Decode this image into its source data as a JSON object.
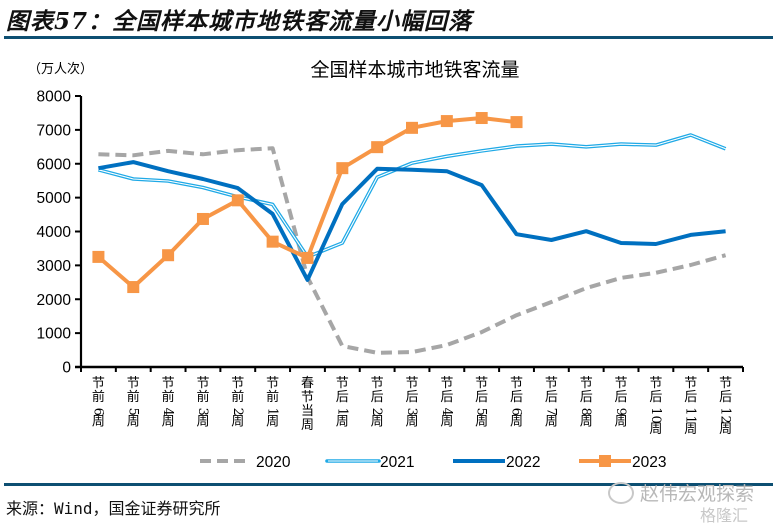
{
  "header": {
    "figure_title": "图表57：全国样本城市地铁客流量小幅回落"
  },
  "footer": {
    "source": "来源：Wind，国金证券研究所",
    "watermark_1": "赵伟宏观探索",
    "watermark_2": "格隆汇"
  },
  "colors": {
    "rule": "#0d4f72",
    "s2020": "#a6a6a6",
    "s2021": "#1fa9e6",
    "s2022": "#0070c0",
    "s2023": "#f79646"
  },
  "chart_data": {
    "type": "line",
    "title": "全国样本城市地铁客流量",
    "unit_label": "（万人次）",
    "xlabel": "",
    "ylabel": "（万人次）",
    "ylim": [
      0,
      8000
    ],
    "yticks": [
      0,
      1000,
      2000,
      3000,
      4000,
      5000,
      6000,
      7000,
      8000
    ],
    "ytick_labels": [
      "0",
      "1000",
      "2000",
      "3000",
      "4000",
      "5000",
      "6000",
      "7000",
      "8000"
    ],
    "grid": false,
    "legend_position": "bottom",
    "categories": [
      "节前6周",
      "节前5周",
      "节前4周",
      "节前3周",
      "节前2周",
      "节前1周",
      "春节当周",
      "节后1周",
      "节后2周",
      "节后3周",
      "节后4周",
      "节后5周",
      "节后6周",
      "节后7周",
      "节后8周",
      "节后9周",
      "节后10周",
      "节后11周",
      "节后12周"
    ],
    "series": [
      {
        "name": "2020",
        "style": "dashed",
        "values": [
          6280,
          6250,
          6380,
          6280,
          6400,
          6460,
          2650,
          620,
          420,
          440,
          650,
          1030,
          1530,
          1920,
          2330,
          2630,
          2780,
          3010,
          3300
        ]
      },
      {
        "name": "2021",
        "style": "double",
        "values": [
          5820,
          5550,
          5490,
          5300,
          5020,
          4800,
          3250,
          3660,
          5600,
          6020,
          6220,
          6380,
          6520,
          6580,
          6500,
          6580,
          6550,
          6850,
          6440
        ]
      },
      {
        "name": "2022",
        "style": "solid",
        "values": [
          5870,
          6050,
          5780,
          5550,
          5280,
          4520,
          2570,
          4810,
          5850,
          5820,
          5780,
          5370,
          3920,
          3750,
          4010,
          3660,
          3630,
          3900,
          4010
        ]
      },
      {
        "name": "2023",
        "style": "marker",
        "values": [
          3250,
          2360,
          3300,
          4370,
          4920,
          3700,
          3220,
          5870,
          6490,
          7060,
          7260,
          7350,
          7230,
          null,
          null,
          null,
          null,
          null,
          null
        ]
      }
    ]
  }
}
